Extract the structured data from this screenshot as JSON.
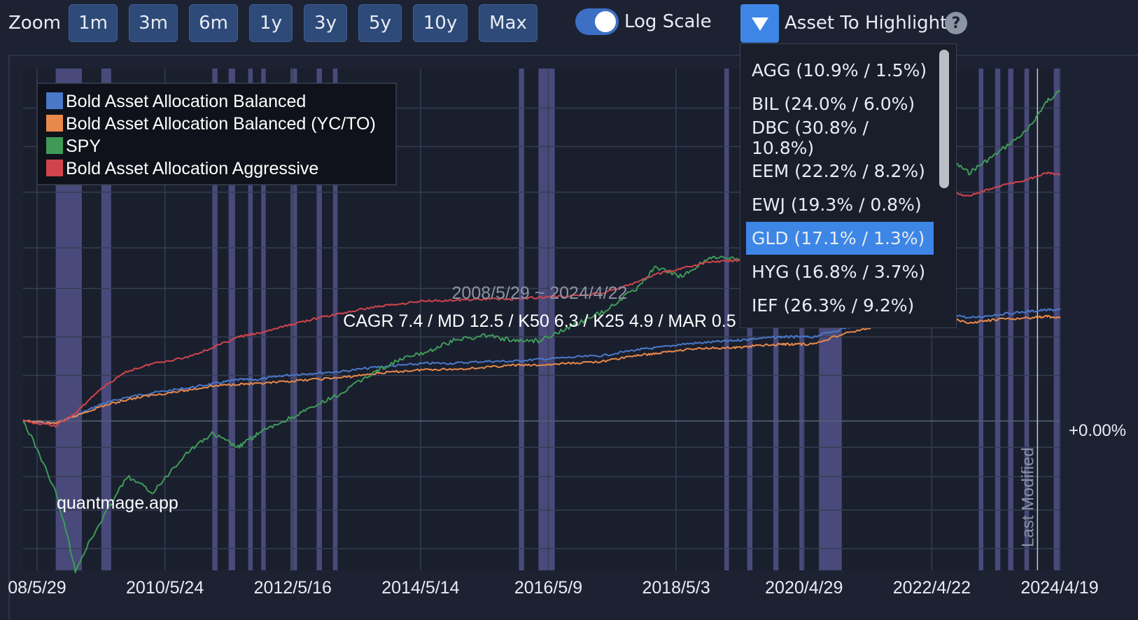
{
  "toolbar": {
    "zoom_label": "Zoom",
    "zoom_buttons": [
      "1m",
      "3m",
      "6m",
      "1y",
      "3y",
      "5y",
      "10y",
      "Max"
    ],
    "log_scale_label": "Log Scale",
    "log_scale_on": true,
    "asset_highlight_label": "Asset To Highlight",
    "help_glyph": "?"
  },
  "dropdown": {
    "items": [
      "AGG (10.9% / 1.5%)",
      "BIL (24.0% / 6.0%)",
      "DBC (30.8% / 10.8%)",
      "EEM (22.2% / 8.2%)",
      "EWJ (19.3% / 0.8%)",
      "GLD (17.1% / 1.3%)",
      "HYG (16.8% / 3.7%)",
      "IEF (26.3% / 9.2%)"
    ],
    "selected": "GLD (17.1% / 1.3%)"
  },
  "colors": {
    "bg": "#1d2233",
    "balanced": "#4a78c8",
    "balanced_yc": "#e8894a",
    "spy": "#3f9a58",
    "aggressive": "#d1444c",
    "highlight_band": "#5a5a96",
    "accent": "#3d86e6"
  },
  "icons": {
    "dropdown": "triangle-down-icon",
    "help": "question-icon"
  },
  "chart_data": {
    "type": "line",
    "y_scale": "log",
    "x_tick_labels": [
      "08/5/29",
      "2010/5/24",
      "2012/5/16",
      "2014/5/14",
      "2016/5/9",
      "2018/5/3",
      "2020/4/29",
      "2022/4/22",
      "2024/4/19"
    ],
    "right_axis_label": "+0.00%",
    "date_range_text": "2008/5/29 ~ 2024/4/22",
    "stats_text": "CAGR 7.4 / MD 12.5 / K50 6.3 / K25 4.9 / MAR 0.5",
    "watermark": "quantmage.app",
    "last_modified_label": "Last Modified",
    "legend": [
      {
        "name": "Bold Asset Allocation Balanced",
        "color": "#4a78c8"
      },
      {
        "name": "Bold Asset Allocation Balanced (YC/TO)",
        "color": "#e8894a"
      },
      {
        "name": "SPY",
        "color": "#3f9a58"
      },
      {
        "name": "Bold Asset Allocation Aggressive",
        "color": "#d1444c"
      }
    ],
    "x": [
      2008.4,
      2008.9,
      2009.2,
      2009.6,
      2010.0,
      2010.4,
      2010.9,
      2011.3,
      2011.7,
      2012.0,
      2012.4,
      2012.8,
      2013.3,
      2013.8,
      2014.2,
      2014.6,
      2015.0,
      2015.5,
      2015.9,
      2016.3,
      2016.8,
      2017.3,
      2017.8,
      2018.1,
      2018.5,
      2018.9,
      2019.3,
      2019.6,
      2020.0,
      2020.2,
      2020.5,
      2021.0,
      2021.5,
      2022.0,
      2022.5,
      2022.9,
      2023.3,
      2023.8,
      2024.1,
      2024.3
    ],
    "series": [
      {
        "name": "Bold Asset Allocation Balanced",
        "color": "#4a78c8",
        "values": [
          0,
          -1,
          2,
          7,
          10,
          12,
          14,
          16,
          18,
          18,
          20,
          21,
          22,
          24,
          25,
          26,
          26,
          27,
          27,
          28,
          29,
          30,
          33,
          34,
          36,
          37,
          38,
          39,
          40,
          40,
          40,
          45,
          49,
          53,
          55,
          51,
          53,
          55,
          56,
          56
        ]
      },
      {
        "name": "Bold Asset Allocation Balanced (YC/TO)",
        "color": "#e8894a",
        "values": [
          0,
          -1,
          2,
          6,
          9,
          11,
          13,
          15,
          16,
          16,
          17,
          18,
          19,
          21,
          22,
          23,
          23,
          24,
          25,
          25,
          26,
          27,
          30,
          31,
          33,
          34,
          34,
          35,
          36,
          36,
          36,
          42,
          46,
          50,
          52,
          48,
          50,
          51,
          52,
          51
        ]
      },
      {
        "name": "SPY",
        "color": "#3f9a58",
        "values": [
          0,
          -25,
          -45,
          -33,
          -20,
          -25,
          -12,
          -5,
          -10,
          -5,
          0,
          5,
          12,
          22,
          28,
          32,
          38,
          41,
          38,
          38,
          46,
          55,
          70,
          85,
          78,
          92,
          92,
          88,
          98,
          78,
          90,
          130,
          158,
          190,
          190,
          170,
          190,
          220,
          260,
          275
        ]
      },
      {
        "name": "Bold Asset Allocation Aggressive",
        "color": "#d1444c",
        "values": [
          0,
          -2,
          3,
          14,
          22,
          26,
          29,
          34,
          40,
          42,
          46,
          50,
          54,
          58,
          60,
          62,
          62,
          63,
          63,
          64,
          65,
          67,
          74,
          80,
          84,
          89,
          90,
          91,
          94,
          95,
          95,
          115,
          128,
          142,
          152,
          146,
          155,
          163,
          170,
          168
        ]
      }
    ],
    "highlight_periods": [
      [
        2008.9,
        2009.3
      ],
      [
        2009.6,
        2009.75
      ],
      [
        2011.3,
        2011.38
      ],
      [
        2011.55,
        2011.65
      ],
      [
        2011.85,
        2011.92
      ],
      [
        2012.05,
        2012.12
      ],
      [
        2012.5,
        2012.6
      ],
      [
        2012.9,
        2012.98
      ],
      [
        2013.15,
        2013.22
      ],
      [
        2016.0,
        2016.08
      ],
      [
        2016.3,
        2016.55
      ],
      [
        2019.15,
        2019.22
      ],
      [
        2019.5,
        2019.58
      ],
      [
        2019.9,
        2019.98
      ],
      [
        2020.3,
        2020.38
      ],
      [
        2020.6,
        2020.95
      ],
      [
        2023.05,
        2023.12
      ],
      [
        2023.3,
        2023.38
      ],
      [
        2023.5,
        2023.58
      ],
      [
        2023.75,
        2023.82
      ],
      [
        2024.2,
        2024.3
      ]
    ]
  }
}
